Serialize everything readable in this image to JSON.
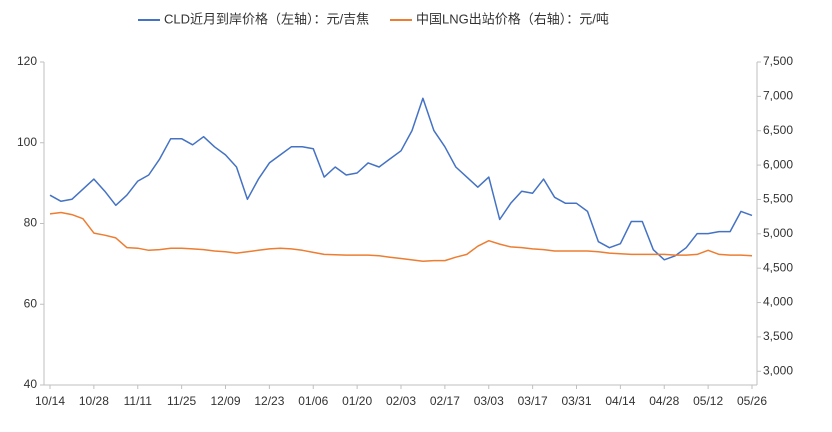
{
  "chart_data": {
    "type": "line",
    "categories": [
      "10/14",
      null,
      null,
      null,
      "10/28",
      null,
      null,
      null,
      "11/11",
      null,
      null,
      null,
      "11/25",
      null,
      null,
      null,
      "12/09",
      null,
      null,
      null,
      "12/23",
      null,
      null,
      null,
      "01/06",
      null,
      null,
      null,
      "01/20",
      null,
      null,
      null,
      "02/03",
      null,
      null,
      null,
      "02/17",
      null,
      null,
      null,
      "03/03",
      null,
      null,
      null,
      "03/17",
      null,
      null,
      null,
      "03/31",
      null,
      null,
      null,
      "04/14",
      null,
      null,
      null,
      "04/28",
      null,
      null,
      null,
      "05/12",
      null,
      null,
      null,
      "05/26"
    ],
    "series": [
      {
        "name": "CLD近月到岸价格（左轴）：元/吉焦",
        "color": "#4472c4",
        "axis": "y",
        "values": [
          87,
          85.5,
          86,
          88.5,
          91,
          88,
          84.5,
          87,
          90.5,
          92,
          96,
          101,
          101,
          99.5,
          101.5,
          99,
          97,
          94,
          86,
          91,
          95,
          97,
          99,
          99,
          98.5,
          91.5,
          94,
          92,
          92.5,
          95,
          94,
          96,
          98,
          103,
          111,
          103,
          99,
          94,
          91.5,
          89,
          91.5,
          81,
          85,
          88,
          87.5,
          91,
          86.5,
          85,
          85,
          83,
          75.5,
          74,
          75,
          80.5,
          80.5,
          73.5,
          71,
          72,
          74,
          77.5,
          77.5,
          78,
          78,
          83,
          82
        ]
      },
      {
        "name": "中国LNG出站价格（右轴）：元/吨",
        "color": "#ed7d31",
        "axis": "y2",
        "values": [
          5290,
          5310,
          5280,
          5220,
          5010,
          4980,
          4940,
          4800,
          4790,
          4760,
          4770,
          4790,
          4790,
          4780,
          4770,
          4750,
          4740,
          4720,
          4740,
          4760,
          4780,
          4790,
          4780,
          4760,
          4730,
          4700,
          4695,
          4690,
          4690,
          4690,
          4680,
          4660,
          4640,
          4620,
          4600,
          4610,
          4610,
          4660,
          4700,
          4820,
          4900,
          4850,
          4810,
          4800,
          4780,
          4770,
          4750,
          4750,
          4750,
          4750,
          4740,
          4720,
          4710,
          4700,
          4700,
          4700,
          4700,
          4690,
          4690,
          4700,
          4760,
          4700,
          4690,
          4690,
          4680
        ]
      }
    ],
    "ylim": [
      40,
      120
    ],
    "yticks": [
      40,
      60,
      80,
      100,
      120
    ],
    "y2lim": [
      2800,
      7500
    ],
    "y2ticks": [
      {
        "value": 3000,
        "label": "3,000"
      },
      {
        "value": 3500,
        "label": "3,500"
      },
      {
        "value": 4000,
        "label": "4,000"
      },
      {
        "value": 4500,
        "label": "4,500"
      },
      {
        "value": 5000,
        "label": "5,000"
      },
      {
        "value": 5500,
        "label": "5,500"
      },
      {
        "value": 6000,
        "label": "6,000"
      },
      {
        "value": 6500,
        "label": "6,500"
      },
      {
        "value": 7000,
        "label": "7,000"
      },
      {
        "value": 7500,
        "label": "7,500"
      }
    ],
    "grid": false,
    "legend": "top"
  }
}
